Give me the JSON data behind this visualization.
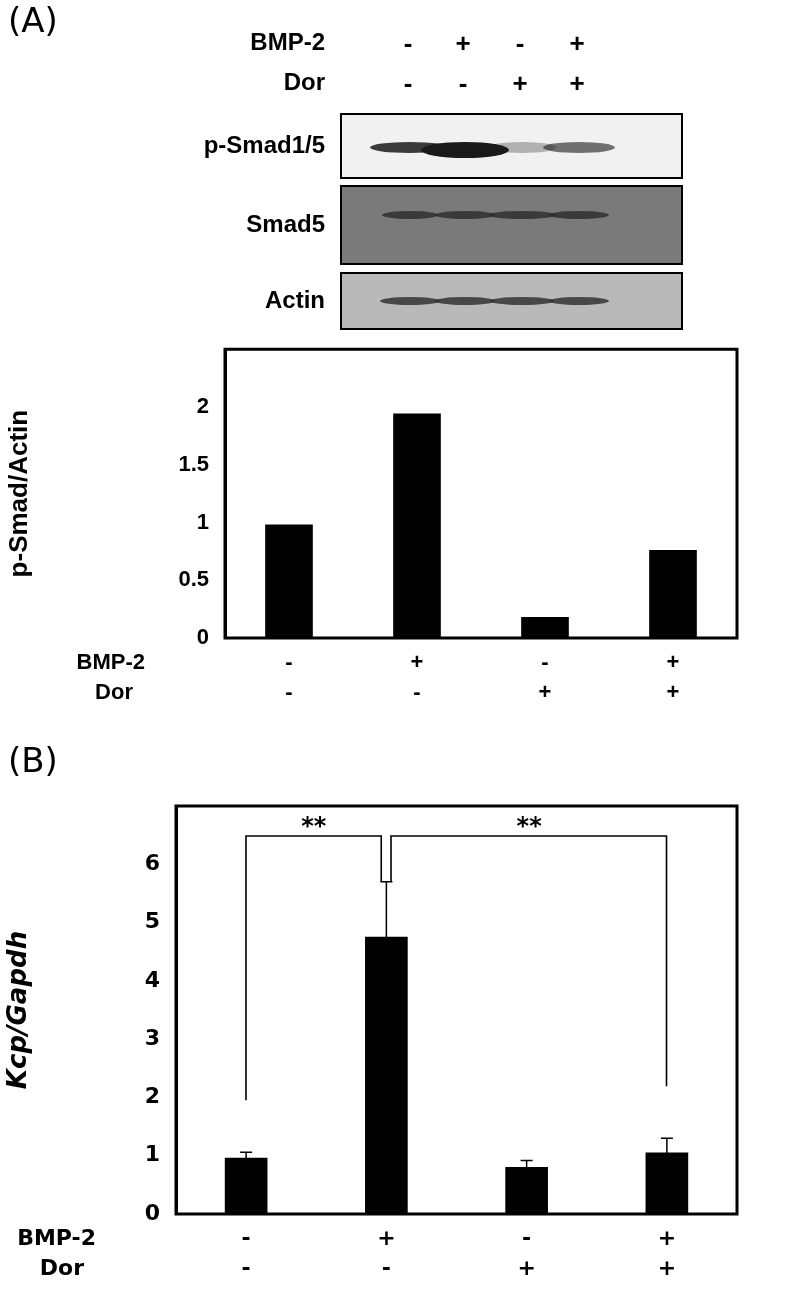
{
  "chart_data": [
    {
      "type": "bar",
      "title": "(A)",
      "ylabel": "p-Smad/Actin",
      "categories": [
        "-\n-",
        "+\n-",
        "-\n+",
        "+\n+"
      ],
      "values": [
        0.98,
        1.94,
        0.18,
        0.76
      ],
      "color": "#000000",
      "ylim": [
        0,
        2.5
      ],
      "yticks": [
        0,
        0.5,
        1,
        1.5,
        2
      ],
      "grid": false,
      "legend": false,
      "annotations": [
        "BMP-2",
        "Dor",
        "p-Smad1/5",
        "Smad5",
        "Actin",
        "BMP-2",
        "Dor"
      ]
    },
    {
      "type": "bar",
      "title": "(B)",
      "ylabel": "Kcp/Gapdh",
      "categories": [
        "-\n-",
        "+\n-",
        "-\n+",
        "+\n+"
      ],
      "values": [
        0.96,
        4.75,
        0.8,
        1.05
      ],
      "errors": [
        0.1,
        0.95,
        0.12,
        0.25
      ],
      "color": "#000000",
      "ylim": [
        0,
        7
      ],
      "yticks": [
        0,
        1,
        2,
        3,
        4,
        5,
        6
      ],
      "grid": false,
      "legend": false,
      "annotations": [
        "**",
        "**",
        "BMP-2",
        "Dor"
      ]
    }
  ]
}
